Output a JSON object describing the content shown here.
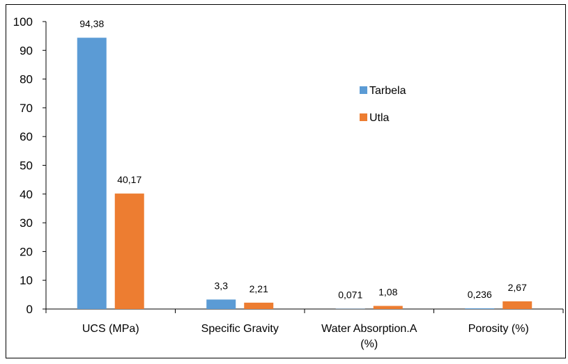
{
  "chart_data": {
    "type": "bar",
    "title": "",
    "xlabel": "",
    "ylabel": "",
    "ylim": [
      0,
      100
    ],
    "yticks": [
      0,
      10,
      20,
      30,
      40,
      50,
      60,
      70,
      80,
      90,
      100
    ],
    "grid": false,
    "legend_position": "center-right",
    "categories": [
      "UCS (MPa)",
      "Specific Gravity",
      "Water Absorption.A (%)",
      "Porosity (%)"
    ],
    "category_lines": [
      [
        "UCS (MPa)"
      ],
      [
        "Specific Gravity"
      ],
      [
        "Water Absorption.A",
        "(%)"
      ],
      [
        "Porosity (%)"
      ]
    ],
    "series": [
      {
        "name": "Tarbela",
        "color": "#5B9BD5",
        "values": [
          94.38,
          3.3,
          0.071,
          0.236
        ],
        "labels": [
          "94,38",
          "3,3",
          "0,071",
          "0,236"
        ]
      },
      {
        "name": "Utla",
        "color": "#ED7D31",
        "values": [
          40.17,
          2.21,
          1.08,
          2.67
        ],
        "labels": [
          "40,17",
          "2,21",
          "1,08",
          "2,67"
        ]
      }
    ]
  }
}
